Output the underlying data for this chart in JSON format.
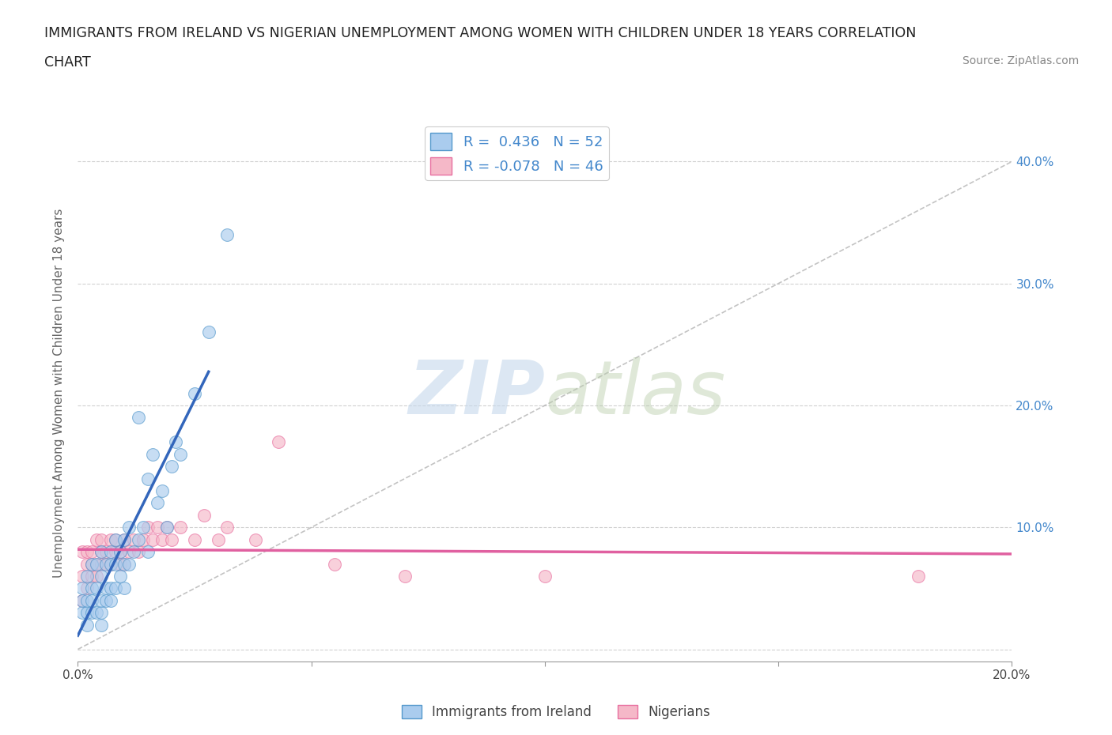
{
  "title_line1": "IMMIGRANTS FROM IRELAND VS NIGERIAN UNEMPLOYMENT AMONG WOMEN WITH CHILDREN UNDER 18 YEARS CORRELATION",
  "title_line2": "CHART",
  "source": "Source: ZipAtlas.com",
  "ylabel": "Unemployment Among Women with Children Under 18 years",
  "xlim": [
    0.0,
    0.2
  ],
  "ylim": [
    -0.01,
    0.43
  ],
  "yticks": [
    0.0,
    0.1,
    0.2,
    0.3,
    0.4
  ],
  "ytick_labels_right": [
    "",
    "10.0%",
    "20.0%",
    "30.0%",
    "40.0%"
  ],
  "xticks": [
    0.0,
    0.05,
    0.1,
    0.15,
    0.2
  ],
  "xtick_labels": [
    "0.0%",
    "",
    "",
    "",
    "20.0%"
  ],
  "ireland_R": 0.436,
  "ireland_N": 52,
  "nigerian_R": -0.078,
  "nigerian_N": 46,
  "ireland_color": "#aaccee",
  "nigerian_color": "#f5b8c8",
  "ireland_edge_color": "#5599cc",
  "nigerian_edge_color": "#e870a0",
  "ireland_line_color": "#3366bb",
  "nigerian_line_color": "#e060a0",
  "diagonal_color": "#aaaaaa",
  "background_color": "#ffffff",
  "watermark_zip": "ZIP",
  "watermark_atlas": "atlas",
  "ireland_scatter_x": [
    0.001,
    0.001,
    0.001,
    0.002,
    0.002,
    0.002,
    0.002,
    0.003,
    0.003,
    0.003,
    0.003,
    0.004,
    0.004,
    0.004,
    0.005,
    0.005,
    0.005,
    0.005,
    0.005,
    0.006,
    0.006,
    0.006,
    0.007,
    0.007,
    0.007,
    0.007,
    0.008,
    0.008,
    0.008,
    0.009,
    0.009,
    0.01,
    0.01,
    0.01,
    0.011,
    0.011,
    0.012,
    0.013,
    0.013,
    0.014,
    0.015,
    0.015,
    0.016,
    0.017,
    0.018,
    0.019,
    0.02,
    0.021,
    0.022,
    0.025,
    0.028,
    0.032
  ],
  "ireland_scatter_y": [
    0.03,
    0.04,
    0.05,
    0.02,
    0.03,
    0.04,
    0.06,
    0.03,
    0.04,
    0.05,
    0.07,
    0.03,
    0.05,
    0.07,
    0.02,
    0.03,
    0.04,
    0.06,
    0.08,
    0.04,
    0.05,
    0.07,
    0.04,
    0.05,
    0.07,
    0.08,
    0.05,
    0.07,
    0.09,
    0.06,
    0.08,
    0.05,
    0.07,
    0.09,
    0.07,
    0.1,
    0.08,
    0.09,
    0.19,
    0.1,
    0.08,
    0.14,
    0.16,
    0.12,
    0.13,
    0.1,
    0.15,
    0.17,
    0.16,
    0.21,
    0.26,
    0.34
  ],
  "nigerian_scatter_x": [
    0.001,
    0.001,
    0.001,
    0.002,
    0.002,
    0.002,
    0.003,
    0.003,
    0.003,
    0.004,
    0.004,
    0.004,
    0.005,
    0.005,
    0.005,
    0.006,
    0.006,
    0.007,
    0.007,
    0.008,
    0.008,
    0.009,
    0.009,
    0.01,
    0.01,
    0.011,
    0.012,
    0.013,
    0.014,
    0.015,
    0.016,
    0.017,
    0.018,
    0.019,
    0.02,
    0.022,
    0.025,
    0.027,
    0.03,
    0.032,
    0.038,
    0.043,
    0.055,
    0.07,
    0.1,
    0.18
  ],
  "nigerian_scatter_y": [
    0.04,
    0.06,
    0.08,
    0.05,
    0.07,
    0.08,
    0.06,
    0.07,
    0.08,
    0.06,
    0.07,
    0.09,
    0.07,
    0.08,
    0.09,
    0.07,
    0.08,
    0.07,
    0.09,
    0.08,
    0.09,
    0.07,
    0.08,
    0.07,
    0.09,
    0.08,
    0.09,
    0.08,
    0.09,
    0.1,
    0.09,
    0.1,
    0.09,
    0.1,
    0.09,
    0.1,
    0.09,
    0.11,
    0.09,
    0.1,
    0.09,
    0.17,
    0.07,
    0.06,
    0.06,
    0.06
  ],
  "ireland_line_x0": 0.0,
  "ireland_line_x1": 0.028,
  "nigerian_line_x0": 0.0,
  "nigerian_line_x1": 0.2
}
